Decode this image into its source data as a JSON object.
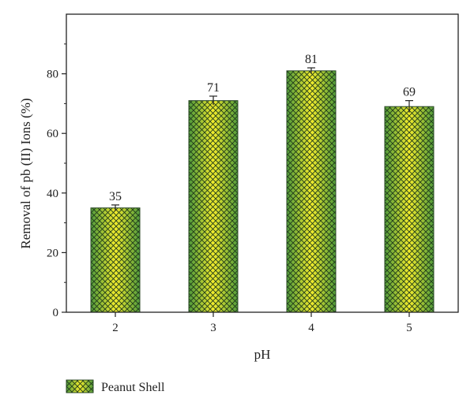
{
  "chart_data": {
    "type": "bar",
    "title": "",
    "xlabel": "pH",
    "ylabel": "Removal of pb (II) Ions (%)",
    "categories": [
      "2",
      "3",
      "4",
      "5"
    ],
    "series": [
      {
        "name": "Peanut Shell",
        "values": [
          35,
          71,
          81,
          69
        ],
        "errors": [
          1,
          1.5,
          1,
          2
        ]
      }
    ],
    "data_labels": [
      "35",
      "71",
      "81",
      "69"
    ],
    "ylim": [
      0,
      100
    ],
    "yticks": [
      0,
      20,
      40,
      60,
      80
    ],
    "ytick_labels": [
      "0",
      "20",
      "40",
      "60",
      "80"
    ],
    "grid": false,
    "legend": "bottom-left",
    "colors": {
      "bar_fill_edge": "#4f9a3c",
      "bar_fill_center": "#f3ec2c",
      "hatch": "#1e3a1a",
      "bar_stroke": "#2c4a26",
      "axis": "#222222"
    }
  }
}
